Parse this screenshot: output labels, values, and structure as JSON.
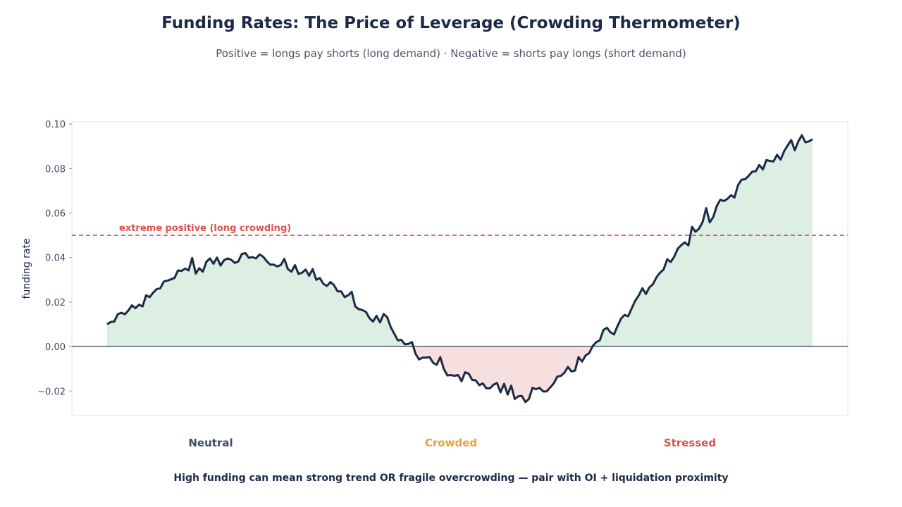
{
  "header": {
    "title": "Funding Rates: The Price of Leverage (Crowding Thermometer)",
    "subtitle": "Positive = longs pay shorts (long demand) · Negative = shorts pay longs (short demand)"
  },
  "regimes": [
    {
      "label": "Neutral",
      "color": "#3d4b63"
    },
    {
      "label": "Crowded",
      "color": "#e8a23a"
    },
    {
      "label": "Stressed",
      "color": "#e0514b"
    }
  ],
  "footer": {
    "text": "High funding can mean strong trend OR fragile overcrowding — pair with OI + liquidation proximity"
  },
  "colors": {
    "line": "#1b2a47",
    "positive_fill": "#dcefe2",
    "negative_fill": "#f7dfe0",
    "threshold": "#e0514b",
    "zero_line": "#1b2a47"
  },
  "chart_data": {
    "type": "area",
    "title": "",
    "xlabel": "",
    "ylabel": "funding rate",
    "ylim": [
      -0.031,
      0.101
    ],
    "yticks": [
      "0.10",
      "0.08",
      "0.06",
      "0.04",
      "0.02",
      "0.00",
      "−0.02"
    ],
    "ytick_values": [
      0.1,
      0.08,
      0.06,
      0.04,
      0.02,
      0.0,
      -0.02
    ],
    "grid": false,
    "threshold": {
      "value": 0.05,
      "label": "extreme positive (long crowding)"
    },
    "series": [
      {
        "values": [
          0.01,
          0.011,
          0.0112,
          0.0145,
          0.0152,
          0.0145,
          0.0162,
          0.0185,
          0.0172,
          0.0188,
          0.018,
          0.023,
          0.0222,
          0.0242,
          0.0258,
          0.0262,
          0.0292,
          0.0296,
          0.0302,
          0.0308,
          0.0342,
          0.034,
          0.035,
          0.0342,
          0.0398,
          0.0328,
          0.0352,
          0.0336,
          0.038,
          0.0396,
          0.0372,
          0.04,
          0.0364,
          0.0388,
          0.0396,
          0.039,
          0.0376,
          0.0382,
          0.0416,
          0.042,
          0.0398,
          0.0402,
          0.0396,
          0.0414,
          0.0404,
          0.0384,
          0.0368,
          0.0368,
          0.036,
          0.0366,
          0.0394,
          0.0348,
          0.0336,
          0.0366,
          0.0326,
          0.0332,
          0.0346,
          0.0318,
          0.0348,
          0.03,
          0.0308,
          0.0282,
          0.0272,
          0.029,
          0.0276,
          0.0248,
          0.0248,
          0.0222,
          0.023,
          0.0246,
          0.018,
          0.0168,
          0.0164,
          0.0156,
          0.0128,
          0.0112,
          0.0138,
          0.0108,
          0.0146,
          0.0132,
          0.0088,
          0.0058,
          0.0028,
          0.003,
          0.001,
          0.0012,
          0.002,
          -0.0032,
          -0.0058,
          -0.005,
          -0.005,
          -0.0048,
          -0.0074,
          -0.0082,
          -0.0048,
          -0.0102,
          -0.013,
          -0.0128,
          -0.0132,
          -0.0128,
          -0.0156,
          -0.0116,
          -0.0122,
          -0.015,
          -0.0152,
          -0.0174,
          -0.0166,
          -0.0188,
          -0.0188,
          -0.0172,
          -0.0164,
          -0.0206,
          -0.0168,
          -0.0216,
          -0.0176,
          -0.0236,
          -0.0224,
          -0.0222,
          -0.025,
          -0.0236,
          -0.0186,
          -0.0192,
          -0.0186,
          -0.0202,
          -0.0202,
          -0.0184,
          -0.0166,
          -0.0136,
          -0.0132,
          -0.0118,
          -0.0092,
          -0.0112,
          -0.0108,
          -0.0048,
          -0.0068,
          -0.004,
          -0.003,
          0.0002,
          0.002,
          0.0028,
          0.0074,
          0.0084,
          0.0064,
          0.0054,
          0.0092,
          0.0126,
          0.0142,
          0.0136,
          0.0172,
          0.0206,
          0.023,
          0.0262,
          0.0236,
          0.0266,
          0.028,
          0.0312,
          0.0332,
          0.0346,
          0.0392,
          0.038,
          0.0404,
          0.044,
          0.0456,
          0.0468,
          0.0454,
          0.0538,
          0.0516,
          0.053,
          0.056,
          0.0622,
          0.0558,
          0.0582,
          0.0632,
          0.066,
          0.0654,
          0.0664,
          0.068,
          0.067,
          0.0726,
          0.075,
          0.0752,
          0.0768,
          0.0786,
          0.0788,
          0.0816,
          0.0796,
          0.0838,
          0.0834,
          0.0832,
          0.0862,
          0.084,
          0.0878,
          0.0904,
          0.0928,
          0.0882,
          0.0922,
          0.095,
          0.0918,
          0.0922,
          0.0932
        ]
      }
    ]
  }
}
